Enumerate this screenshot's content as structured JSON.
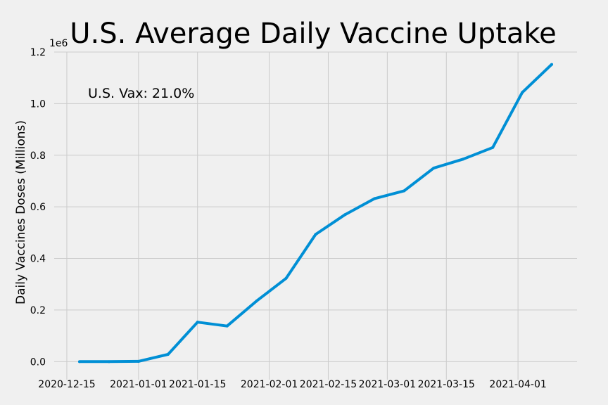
{
  "chart_data": {
    "type": "line",
    "title": "U.S. Average Daily Vaccine Uptake",
    "ylabel": "Daily Vaccines Doses (Millions)",
    "xlabel": "",
    "y_offset_label": "1e6",
    "annotation": "U.S. Vax: 21.0%",
    "x_ticks": [
      "2020-12-15",
      "2021-01-01",
      "2021-01-15",
      "2021-02-01",
      "2021-02-15",
      "2021-03-01",
      "2021-03-15",
      "2021-04-01"
    ],
    "y_ticks": [
      "0.0",
      "0.2",
      "0.4",
      "0.6",
      "0.8",
      "1.0",
      "1.2"
    ],
    "ylim": [
      -0.07,
      1.2
    ],
    "xlim": [
      "2020-12-12",
      "2021-04-15"
    ],
    "grid": true,
    "line_color": "#008fd5",
    "series": [
      {
        "x": [
          "2020-12-18",
          "2020-12-25",
          "2021-01-01",
          "2021-01-08",
          "2021-01-15",
          "2021-01-22",
          "2021-01-29",
          "2021-02-05",
          "2021-02-12",
          "2021-02-19",
          "2021-02-26",
          "2021-03-05",
          "2021-03-12",
          "2021-03-19",
          "2021-03-26",
          "2021-04-02",
          "2021-04-09"
        ],
        "y": [
          0.0,
          0.0,
          0.001,
          0.028,
          0.153,
          0.138,
          0.235,
          0.323,
          0.493,
          0.57,
          0.632,
          0.662,
          0.75,
          0.785,
          0.83,
          1.043,
          1.152
        ]
      }
    ]
  }
}
